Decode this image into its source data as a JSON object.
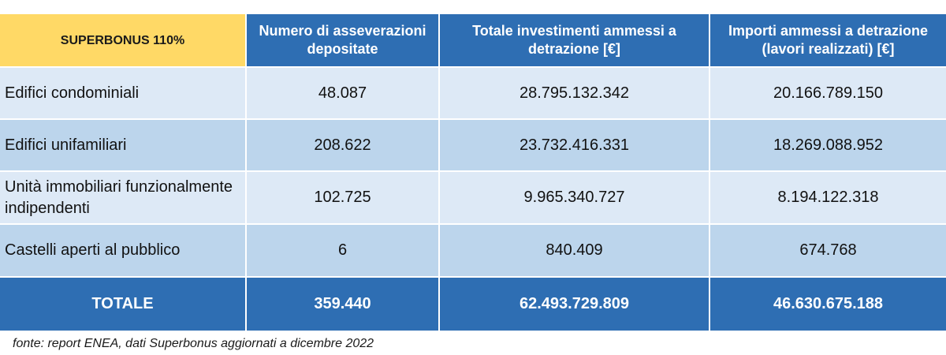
{
  "table": {
    "headers": [
      "SUPERBONUS 110%",
      "Numero di asseverazioni depositate",
      "Totale investimenti ammessi a detrazione [€]",
      "Importi ammessi a detrazione (lavori realizzati) [€]"
    ],
    "rows": [
      [
        "Edifici condominiali",
        "48.087",
        "28.795.132.342",
        "20.166.789.150"
      ],
      [
        "Edifici unifamiliari",
        "208.622",
        "23.732.416.331",
        "18.269.088.952"
      ],
      [
        "Unità immobiliari funzionalmente indipendenti",
        "102.725",
        "9.965.340.727",
        "8.194.122.318"
      ],
      [
        "Castelli aperti al pubblico",
        "6",
        "840.409",
        "674.768"
      ]
    ],
    "total": [
      "TOTALE",
      "359.440",
      "62.493.729.809",
      "46.630.675.188"
    ]
  },
  "source_note": "fonte: report ENEA, dati Superbonus aggiornati a dicembre 2022",
  "colors": {
    "header_blue": "#2e6eb3",
    "corner_yellow": "#ffd966",
    "row_light": "#dde9f6",
    "row_dark": "#bcd5ec"
  }
}
